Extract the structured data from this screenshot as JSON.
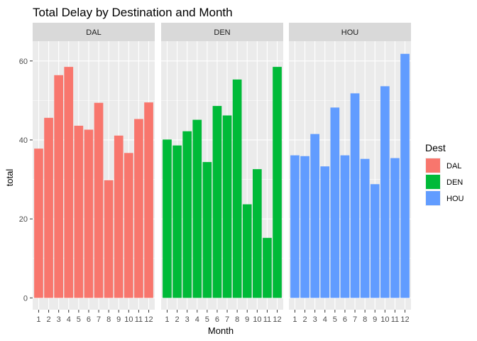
{
  "chart_data": {
    "type": "bar",
    "title": "Total Delay by Destination and Month",
    "xlabel": "Month",
    "ylabel": "total",
    "categories": [
      "1",
      "2",
      "3",
      "4",
      "5",
      "6",
      "7",
      "8",
      "9",
      "10",
      "11",
      "12"
    ],
    "ylim": [
      0,
      62
    ],
    "yticks": [
      0,
      20,
      40,
      60
    ],
    "grid": true,
    "legend": {
      "title": "Dest",
      "position": "right"
    },
    "panels": [
      "DAL",
      "DEN",
      "HOU"
    ],
    "series": [
      {
        "name": "DAL",
        "color": "#F8766D",
        "values": [
          37.8,
          45.6,
          56.4,
          58.5,
          43.6,
          42.6,
          49.4,
          29.8,
          41.1,
          36.7,
          45.3,
          49.5
        ]
      },
      {
        "name": "DEN",
        "color": "#00BA38",
        "values": [
          40.1,
          38.6,
          42.2,
          45.1,
          34.4,
          48.6,
          46.2,
          55.3,
          23.7,
          32.6,
          15.2,
          58.5
        ]
      },
      {
        "name": "HOU",
        "color": "#619CFF",
        "values": [
          36.1,
          35.9,
          41.5,
          33.3,
          48.2,
          36.1,
          51.8,
          35.2,
          28.8,
          53.6,
          35.4,
          61.8
        ]
      }
    ]
  }
}
